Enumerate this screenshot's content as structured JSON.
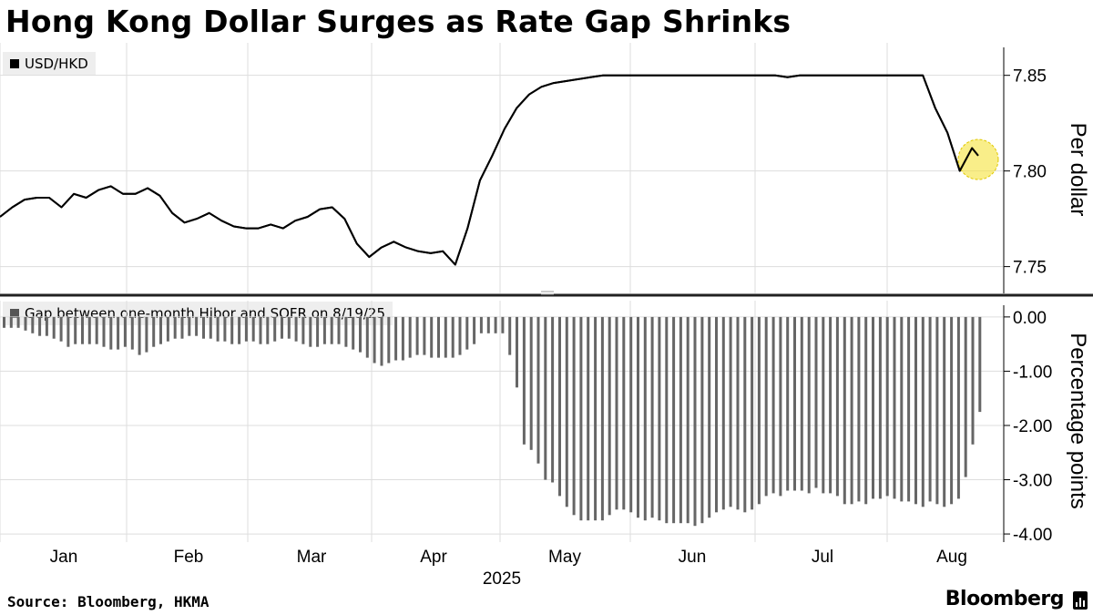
{
  "header": {
    "title": "Hong Kong Dollar Surges as Rate Gap Shrinks"
  },
  "footer": {
    "source": "Source: Bloomberg, HKMA",
    "brand": "Bloomberg"
  },
  "colors": {
    "line": "#000000",
    "bar": "#666666",
    "grid": "#dddddd",
    "highlight": "#f5e33a",
    "legend_bg": "#eeeeee"
  },
  "chart_data": [
    {
      "type": "line",
      "legend": "USD/HKD",
      "ylabel": "Per dollar",
      "ylim": [
        7.736,
        7.867
      ],
      "yticks": [
        "7.85",
        "7.80",
        "7.75"
      ],
      "ytick_values": [
        7.85,
        7.8,
        7.75
      ],
      "xlabel": "2025",
      "xticks": [
        "Jan",
        "Feb",
        "Mar",
        "Apr",
        "May",
        "Jun",
        "Jul",
        "Aug"
      ],
      "x_domain": [
        0,
        163
      ],
      "highlight_index": 159,
      "x": [
        0,
        2,
        4,
        6,
        8,
        10,
        12,
        14,
        16,
        18,
        20,
        22,
        24,
        26,
        28,
        30,
        32,
        34,
        36,
        38,
        40,
        42,
        44,
        46,
        48,
        50,
        52,
        54,
        56,
        58,
        60,
        62,
        64,
        66,
        68,
        70,
        72,
        74,
        76,
        78,
        80,
        82,
        84,
        86,
        88,
        90,
        92,
        94,
        96,
        98,
        100,
        102,
        104,
        106,
        108,
        110,
        112,
        114,
        116,
        118,
        120,
        122,
        124,
        126,
        128,
        130,
        132,
        134,
        136,
        138,
        140,
        142,
        144,
        146,
        148,
        150,
        152,
        154,
        156,
        158,
        159,
        160,
        161
      ],
      "values": [
        7.776,
        7.781,
        7.785,
        7.786,
        7.786,
        7.781,
        7.788,
        7.786,
        7.79,
        7.792,
        7.788,
        7.788,
        7.791,
        7.787,
        7.778,
        7.773,
        7.775,
        7.778,
        7.774,
        7.771,
        7.77,
        7.77,
        7.772,
        7.77,
        7.774,
        7.776,
        7.78,
        7.781,
        7.775,
        7.762,
        7.755,
        7.76,
        7.763,
        7.76,
        7.758,
        7.757,
        7.758,
        7.751,
        7.77,
        7.795,
        7.808,
        7.822,
        7.833,
        7.84,
        7.844,
        7.846,
        7.847,
        7.848,
        7.849,
        7.85,
        7.85,
        7.85,
        7.85,
        7.85,
        7.85,
        7.85,
        7.85,
        7.85,
        7.85,
        7.85,
        7.85,
        7.85,
        7.85,
        7.85,
        7.849,
        7.85,
        7.85,
        7.85,
        7.85,
        7.85,
        7.85,
        7.85,
        7.85,
        7.85,
        7.85,
        7.85,
        7.833,
        7.82,
        7.8,
        7.812,
        7.808,
        null,
        null
      ]
    },
    {
      "type": "bar",
      "legend": "Gap between one-month Hibor and SOFR on 8/19/25",
      "ylabel": "Percentage points",
      "ylim": [
        -4.15,
        0.3
      ],
      "yticks": [
        "0.00",
        "-1.00",
        "-2.00",
        "-3.00",
        "-4.00"
      ],
      "ytick_values": [
        0,
        -1,
        -2,
        -3,
        -4
      ],
      "x_domain": [
        0,
        163
      ],
      "values": [
        -0.2,
        -0.2,
        -0.2,
        -0.25,
        -0.3,
        -0.35,
        -0.35,
        -0.4,
        -0.45,
        -0.55,
        -0.5,
        -0.5,
        -0.5,
        -0.5,
        -0.55,
        -0.6,
        -0.6,
        -0.55,
        -0.6,
        -0.7,
        -0.65,
        -0.55,
        -0.5,
        -0.45,
        -0.4,
        -0.4,
        -0.35,
        -0.35,
        -0.4,
        -0.4,
        -0.45,
        -0.45,
        -0.5,
        -0.5,
        -0.45,
        -0.45,
        -0.5,
        -0.5,
        -0.45,
        -0.4,
        -0.4,
        -0.45,
        -0.5,
        -0.55,
        -0.55,
        -0.5,
        -0.5,
        -0.5,
        -0.55,
        -0.6,
        -0.65,
        -0.75,
        -0.85,
        -0.9,
        -0.85,
        -0.8,
        -0.8,
        -0.75,
        -0.7,
        -0.7,
        -0.75,
        -0.75,
        -0.75,
        -0.75,
        -0.7,
        -0.6,
        -0.5,
        -0.3,
        -0.3,
        -0.3,
        -0.3,
        -0.7,
        -1.3,
        -2.35,
        -2.45,
        -2.7,
        -3.0,
        -3.05,
        -3.3,
        -3.5,
        -3.65,
        -3.75,
        -3.75,
        -3.75,
        -3.75,
        -3.65,
        -3.55,
        -3.55,
        -3.6,
        -3.7,
        -3.75,
        -3.7,
        -3.75,
        -3.8,
        -3.8,
        -3.8,
        -3.8,
        -3.85,
        -3.8,
        -3.7,
        -3.6,
        -3.55,
        -3.5,
        -3.55,
        -3.6,
        -3.55,
        -3.45,
        -3.3,
        -3.25,
        -3.3,
        -3.2,
        -3.2,
        -3.2,
        -3.25,
        -3.15,
        -3.25,
        -3.25,
        -3.3,
        -3.45,
        -3.45,
        -3.4,
        -3.45,
        -3.35,
        -3.35,
        -3.3,
        -3.35,
        -3.4,
        -3.4,
        -3.45,
        -3.5,
        -3.4,
        -3.45,
        -3.5,
        -3.45,
        -3.35,
        -2.95,
        -2.35,
        -1.75
      ]
    }
  ]
}
